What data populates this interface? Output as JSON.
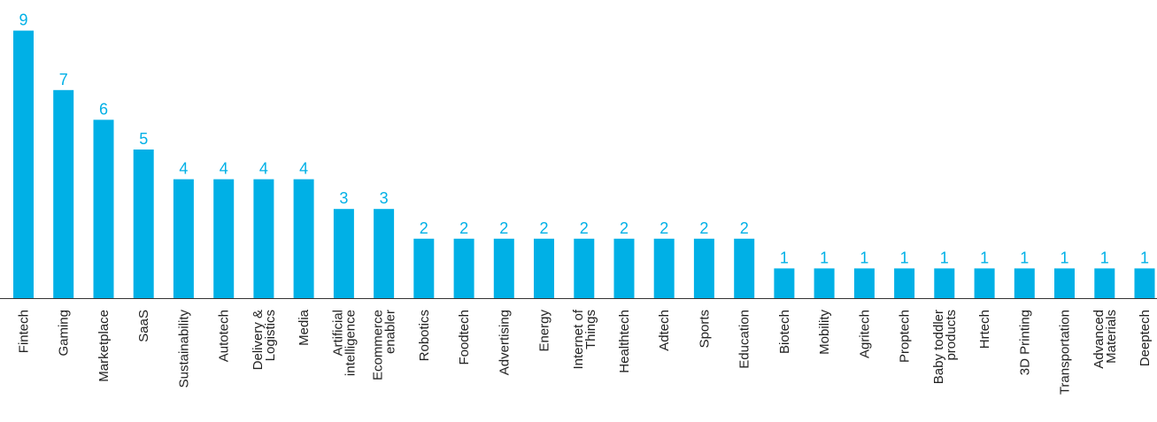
{
  "chart_data": {
    "type": "bar",
    "categories": [
      [
        "Fintech"
      ],
      [
        "Gaming"
      ],
      [
        "Marketplace"
      ],
      [
        "SaaS"
      ],
      [
        "Sustainability"
      ],
      [
        "Autotech"
      ],
      [
        "Delivery &",
        "Logistics"
      ],
      [
        "Media"
      ],
      [
        "Artificial",
        "intelligence"
      ],
      [
        "Ecommerce",
        "enabler"
      ],
      [
        "Robotics"
      ],
      [
        "Foodtech"
      ],
      [
        "Advertising"
      ],
      [
        "Energy"
      ],
      [
        "Internet of",
        "Things"
      ],
      [
        "Healthtech"
      ],
      [
        "Adtech"
      ],
      [
        "Sports"
      ],
      [
        "Education"
      ],
      [
        "Biotech"
      ],
      [
        "Mobility"
      ],
      [
        "Agritech"
      ],
      [
        "Proptech"
      ],
      [
        "Baby toddler",
        "products"
      ],
      [
        "Hrtech"
      ],
      [
        "3D Printing"
      ],
      [
        "Transportation"
      ],
      [
        "Advanced",
        "Materials"
      ],
      [
        "Deeptech"
      ]
    ],
    "values": [
      9,
      7,
      6,
      5,
      4,
      4,
      4,
      4,
      3,
      3,
      2,
      2,
      2,
      2,
      2,
      2,
      2,
      2,
      2,
      1,
      1,
      1,
      1,
      1,
      1,
      1,
      1,
      1,
      1
    ],
    "title": "",
    "xlabel": "",
    "ylabel": "",
    "ylim": [
      0,
      9
    ],
    "grid": false,
    "legend": "none",
    "bar_color": "#00B0E6",
    "label_color": "#00B0E6",
    "text_color": "#222222",
    "axis_color": "#333333"
  }
}
